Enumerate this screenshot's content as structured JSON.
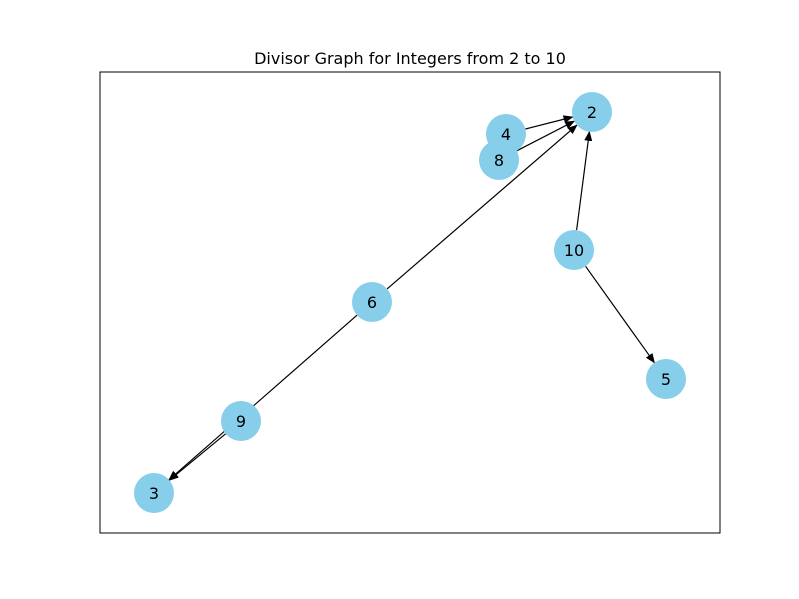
{
  "title": "Divisor Graph for Integers from 2 to 10",
  "colors": {
    "node_fill": "#87CEEB",
    "edge": "#000000",
    "frame": "#000000",
    "background": "#ffffff"
  },
  "nodes": [
    {
      "id": "2",
      "label": "2"
    },
    {
      "id": "3",
      "label": "3"
    },
    {
      "id": "4",
      "label": "4"
    },
    {
      "id": "5",
      "label": "5"
    },
    {
      "id": "6",
      "label": "6"
    },
    {
      "id": "8",
      "label": "8"
    },
    {
      "id": "9",
      "label": "9"
    },
    {
      "id": "10",
      "label": "10"
    }
  ],
  "edges": [
    {
      "from": "4",
      "to": "2"
    },
    {
      "from": "8",
      "to": "2"
    },
    {
      "from": "6",
      "to": "2"
    },
    {
      "from": "10",
      "to": "2"
    },
    {
      "from": "6",
      "to": "3"
    },
    {
      "from": "9",
      "to": "3"
    },
    {
      "from": "10",
      "to": "5"
    }
  ]
}
